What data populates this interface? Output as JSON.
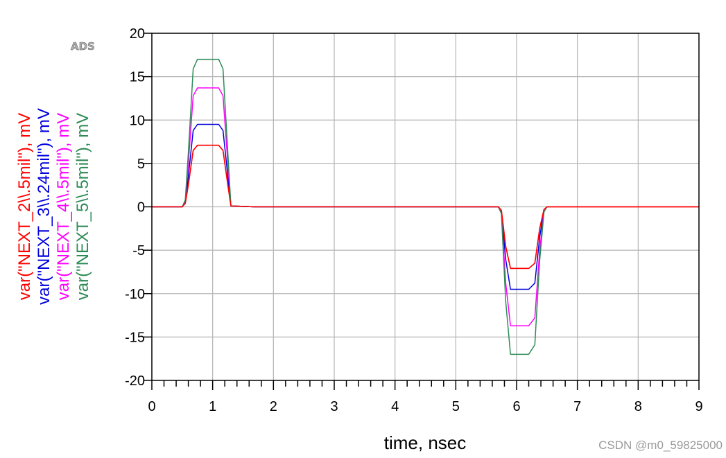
{
  "chart_data": {
    "type": "line",
    "logo": "ADS",
    "xlabel": "time, nsec",
    "xlim": [
      0,
      9
    ],
    "ylim": [
      -20,
      20
    ],
    "x_ticks": [
      0,
      1,
      2,
      3,
      4,
      5,
      6,
      7,
      8,
      9
    ],
    "y_ticks": [
      20,
      15,
      10,
      5,
      0,
      -5,
      -10,
      -15,
      -20
    ],
    "grid": true,
    "series": [
      {
        "name": "var(\"NEXT_2\\\\.5mil\"), mV",
        "color": "#ff0000",
        "x": [
          0,
          0.5,
          0.55,
          0.6,
          0.68,
          0.75,
          1.0,
          1.1,
          1.17,
          1.25,
          1.3,
          1.7,
          5.7,
          5.75,
          5.82,
          5.9,
          6.2,
          6.3,
          6.38,
          6.45,
          6.5,
          9.0
        ],
        "values": [
          0,
          0,
          0.4,
          2.5,
          6.5,
          7.1,
          7.1,
          7.1,
          6.5,
          2.5,
          0.1,
          0,
          0,
          -0.4,
          -4.5,
          -7.1,
          -7.1,
          -6.5,
          -2.5,
          -0.3,
          0,
          0
        ]
      },
      {
        "name": "var(\"NEXT_3\\\\.24mil\"), mV",
        "color": "#0000dd",
        "x": [
          0,
          0.5,
          0.55,
          0.6,
          0.68,
          0.75,
          1.0,
          1.1,
          1.17,
          1.25,
          1.3,
          1.7,
          5.7,
          5.75,
          5.82,
          5.9,
          6.2,
          6.3,
          6.38,
          6.45,
          6.5
        ],
        "values": [
          0,
          0,
          0.5,
          3.5,
          8.8,
          9.5,
          9.5,
          9.5,
          8.8,
          3.5,
          0.1,
          0,
          0,
          -0.5,
          -6.0,
          -9.5,
          -9.5,
          -8.8,
          -3.5,
          -0.4,
          0
        ]
      },
      {
        "name": "var(\"NEXT_4\\\\.5mil\"), mV",
        "color": "#ff00ff",
        "x": [
          0,
          0.5,
          0.55,
          0.6,
          0.68,
          0.75,
          1.0,
          1.1,
          1.17,
          1.25,
          1.3,
          1.7,
          5.7,
          5.75,
          5.82,
          5.9,
          6.2,
          6.3,
          6.38,
          6.45,
          6.5
        ],
        "values": [
          0,
          0,
          0.7,
          5.0,
          12.8,
          13.7,
          13.7,
          13.7,
          12.8,
          5.0,
          0.1,
          0,
          0,
          -0.7,
          -8.7,
          -13.7,
          -13.7,
          -12.8,
          -5.0,
          -0.5,
          0
        ]
      },
      {
        "name": "var(\"NEXT_5\\\\.5mil\"), mV",
        "color": "#2e8b57",
        "x": [
          0,
          0.5,
          0.55,
          0.6,
          0.68,
          0.75,
          1.0,
          1.1,
          1.17,
          1.25,
          1.3,
          1.7,
          5.7,
          5.75,
          5.82,
          5.9,
          6.2,
          6.3,
          6.38,
          6.45,
          6.5
        ],
        "values": [
          0,
          0,
          0.8,
          6.2,
          15.9,
          17.0,
          17.0,
          17.0,
          15.9,
          6.2,
          0.1,
          0,
          0,
          -0.8,
          -10.8,
          -17.0,
          -17.0,
          -15.9,
          -6.2,
          -0.6,
          0
        ]
      }
    ]
  },
  "watermark": "CSDN @m0_59825000"
}
